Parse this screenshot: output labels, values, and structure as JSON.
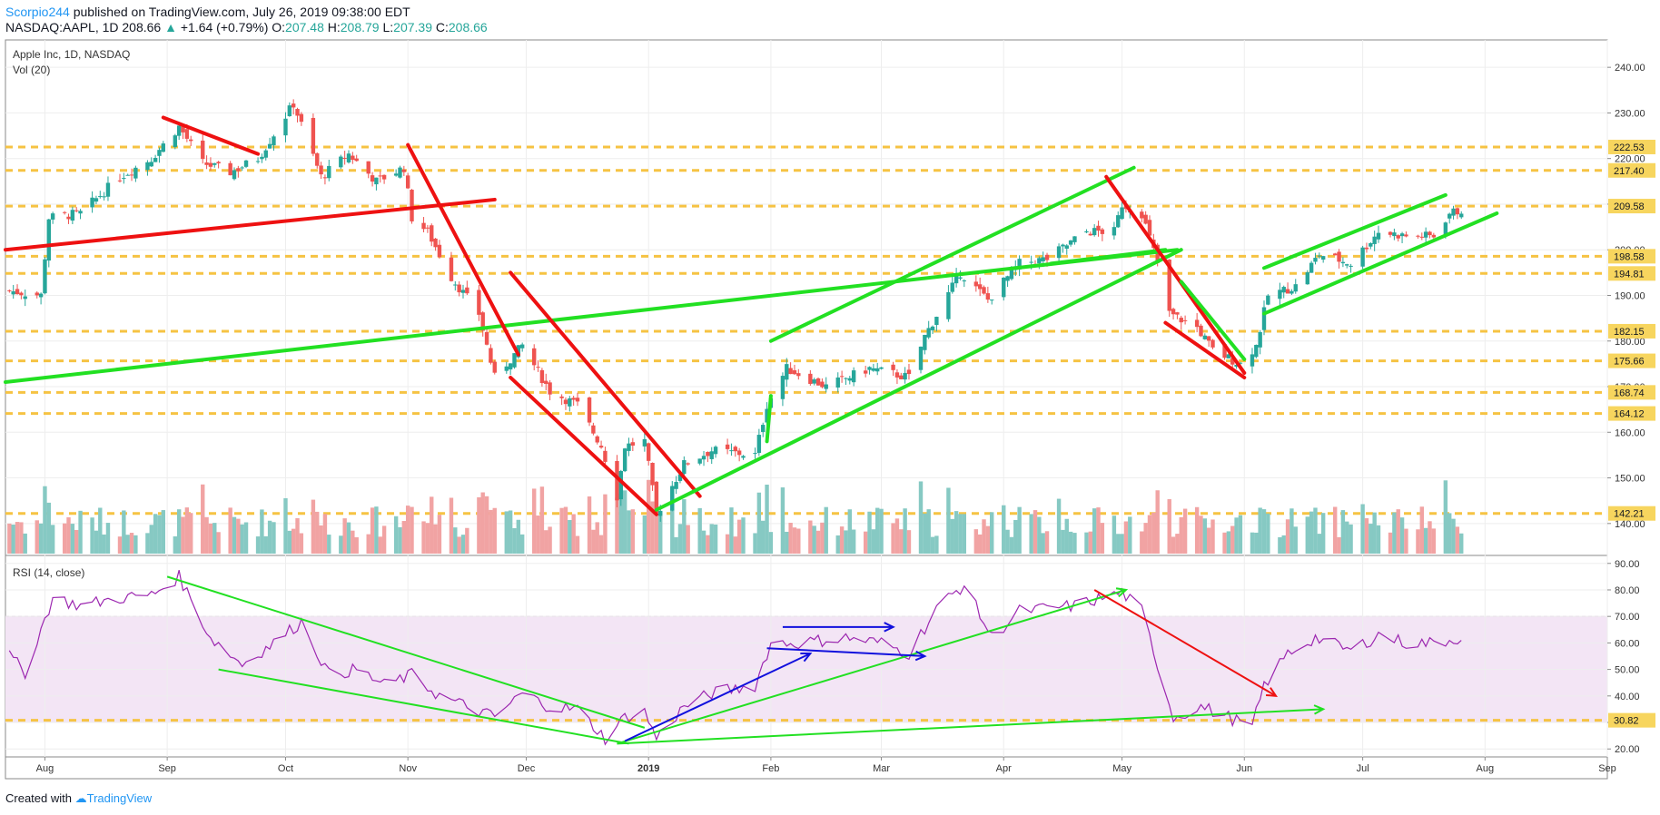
{
  "header": {
    "author": "Scorpio244",
    "published": " published on TradingView.com, July 26, 2019 09:38:00 EDT",
    "symbol": "NASDAQ:AAPL, 1D",
    "last": "208.66",
    "change_arrow": "▲",
    "change": "+1.64 (+0.79%)",
    "o_label": "O:",
    "o": "207.48",
    "h_label": "H:",
    "h": "208.79",
    "l_label": "L:",
    "l": "207.39",
    "c_label": "C:",
    "c": "208.66"
  },
  "footer": {
    "created_with": "Created with",
    "brand": "TradingView"
  },
  "colors": {
    "up": "#26a69a",
    "down": "#ef5350",
    "vol_up": "#86c9c3",
    "vol_down": "#f1a3a3",
    "green_line": "#22e022",
    "red_line": "#ee1111",
    "blue_line": "#1111dd",
    "level": "#f6c343",
    "rsi": "#9c27b0",
    "rsi_band": "#f3e5f5",
    "tag": "#f7d55e"
  },
  "price_pane": {
    "title": "Apple Inc, 1D, NASDAQ",
    "vol_label": "Vol (20)",
    "y_ticks": [
      140,
      150,
      160,
      170,
      180,
      190,
      200,
      210,
      220,
      230,
      240
    ],
    "y_tick_labels": [
      "140.00",
      "150.00",
      "160.00",
      "170.00",
      "180.00",
      "190.00",
      "200.00",
      "210.00",
      "220.00",
      "230.00",
      "240.00"
    ],
    "levels": [
      {
        "value": 222.53,
        "label": "222.53"
      },
      {
        "value": 217.4,
        "label": "217.40"
      },
      {
        "value": 209.58,
        "label": "209.58"
      },
      {
        "value": 198.58,
        "label": "198.58"
      },
      {
        "value": 194.81,
        "label": "194.81"
      },
      {
        "value": 182.15,
        "label": "182.15"
      },
      {
        "value": 175.66,
        "label": "175.66"
      },
      {
        "value": 168.74,
        "label": "168.74"
      },
      {
        "value": 164.12,
        "label": "164.12"
      },
      {
        "value": 142.21,
        "label": "142.21"
      }
    ]
  },
  "rsi_pane": {
    "title": "RSI (14, close)",
    "y_ticks": [
      20,
      30,
      40,
      50,
      60,
      70,
      80,
      90
    ],
    "y_tick_labels": [
      "20.00",
      "30.00",
      "40.00",
      "50.00",
      "60.00",
      "70.00",
      "80.00",
      "90.00"
    ],
    "band": [
      30,
      70
    ],
    "level": {
      "value": 30.82,
      "label": "30.82"
    }
  },
  "x_axis": {
    "labels": [
      {
        "date": "2018-08-01",
        "label": "Aug"
      },
      {
        "date": "2018-09-01",
        "label": "Sep"
      },
      {
        "date": "2018-10-01",
        "label": "Oct"
      },
      {
        "date": "2018-11-01",
        "label": "Nov"
      },
      {
        "date": "2018-12-01",
        "label": "Dec"
      },
      {
        "date": "2019-01-01",
        "label": "2019"
      },
      {
        "date": "2019-02-01",
        "label": "Feb"
      },
      {
        "date": "2019-03-01",
        "label": "Mar"
      },
      {
        "date": "2019-04-01",
        "label": "Apr"
      },
      {
        "date": "2019-05-01",
        "label": "May"
      },
      {
        "date": "2019-06-01",
        "label": "Jun"
      },
      {
        "date": "2019-07-01",
        "label": "Jul"
      },
      {
        "date": "2019-08-01",
        "label": "Aug"
      },
      {
        "date": "2019-09-01",
        "label": "Sep"
      }
    ]
  },
  "chart_data": {
    "type": "candlestick",
    "title": "Apple Inc, 1D, NASDAQ",
    "x_range": [
      "2018-07-22",
      "2019-09-01"
    ],
    "ylim": [
      133,
      246
    ],
    "rsi_ylim": [
      17,
      93
    ],
    "close_keypoints": [
      [
        "2018-07-23",
        191
      ],
      [
        "2018-07-31",
        190
      ],
      [
        "2018-08-02",
        207
      ],
      [
        "2018-08-10",
        208
      ],
      [
        "2018-08-20",
        216
      ],
      [
        "2018-08-28",
        220
      ],
      [
        "2018-09-04",
        227
      ],
      [
        "2018-09-10",
        219
      ],
      [
        "2018-09-17",
        217
      ],
      [
        "2018-09-24",
        220
      ],
      [
        "2018-10-03",
        232
      ],
      [
        "2018-10-10",
        216
      ],
      [
        "2018-10-17",
        221
      ],
      [
        "2018-10-24",
        215
      ],
      [
        "2018-10-31",
        218
      ],
      [
        "2018-11-02",
        207
      ],
      [
        "2018-11-06",
        204
      ],
      [
        "2018-11-12",
        194
      ],
      [
        "2018-11-19",
        186
      ],
      [
        "2018-11-23",
        172
      ],
      [
        "2018-11-30",
        179
      ],
      [
        "2018-12-07",
        169
      ],
      [
        "2018-12-14",
        166
      ],
      [
        "2018-12-20",
        157
      ],
      [
        "2018-12-24",
        146
      ],
      [
        "2018-12-26",
        157
      ],
      [
        "2018-12-31",
        158
      ],
      [
        "2019-01-03",
        142
      ],
      [
        "2019-01-10",
        153
      ],
      [
        "2019-01-17",
        156
      ],
      [
        "2019-01-28",
        155
      ],
      [
        "2019-01-31",
        166
      ],
      [
        "2019-02-05",
        174
      ],
      [
        "2019-02-15",
        170
      ],
      [
        "2019-02-26",
        174
      ],
      [
        "2019-03-08",
        172
      ],
      [
        "2019-03-12",
        181
      ],
      [
        "2019-03-21",
        195
      ],
      [
        "2019-03-28",
        189
      ],
      [
        "2019-04-05",
        197
      ],
      [
        "2019-04-12",
        198
      ],
      [
        "2019-04-22",
        204
      ],
      [
        "2019-04-29",
        204
      ],
      [
        "2019-05-01",
        210
      ],
      [
        "2019-05-06",
        208
      ],
      [
        "2019-05-10",
        197
      ],
      [
        "2019-05-13",
        186
      ],
      [
        "2019-05-20",
        183
      ],
      [
        "2019-05-24",
        178
      ],
      [
        "2019-05-31",
        175
      ],
      [
        "2019-06-04",
        179
      ],
      [
        "2019-06-07",
        190
      ],
      [
        "2019-06-14",
        192
      ],
      [
        "2019-06-20",
        199
      ],
      [
        "2019-06-28",
        197
      ],
      [
        "2019-07-05",
        204
      ],
      [
        "2019-07-12",
        203
      ],
      [
        "2019-07-19",
        203
      ],
      [
        "2019-07-23",
        208
      ],
      [
        "2019-07-26",
        208.66
      ]
    ],
    "rsi_keypoints": [
      [
        "2018-07-23",
        55
      ],
      [
        "2018-07-27",
        49
      ],
      [
        "2018-08-03",
        77
      ],
      [
        "2018-08-10",
        74
      ],
      [
        "2018-08-20",
        77
      ],
      [
        "2018-08-28",
        78
      ],
      [
        "2018-09-04",
        85
      ],
      [
        "2018-09-12",
        62
      ],
      [
        "2018-09-20",
        52
      ],
      [
        "2018-09-28",
        60
      ],
      [
        "2018-10-05",
        68
      ],
      [
        "2018-10-12",
        48
      ],
      [
        "2018-10-19",
        50
      ],
      [
        "2018-10-26",
        44
      ],
      [
        "2018-11-02",
        48
      ],
      [
        "2018-11-09",
        40
      ],
      [
        "2018-11-16",
        36
      ],
      [
        "2018-11-23",
        32
      ],
      [
        "2018-11-30",
        41
      ],
      [
        "2018-12-07",
        36
      ],
      [
        "2018-12-14",
        35
      ],
      [
        "2018-12-21",
        24
      ],
      [
        "2018-12-26",
        32
      ],
      [
        "2018-12-31",
        34
      ],
      [
        "2019-01-03",
        24
      ],
      [
        "2019-01-10",
        36
      ],
      [
        "2019-01-17",
        41
      ],
      [
        "2019-01-28",
        44
      ],
      [
        "2019-02-01",
        60
      ],
      [
        "2019-02-08",
        60
      ],
      [
        "2019-02-20",
        62
      ],
      [
        "2019-03-01",
        60
      ],
      [
        "2019-03-08",
        56
      ],
      [
        "2019-03-15",
        73
      ],
      [
        "2019-03-22",
        82
      ],
      [
        "2019-03-29",
        62
      ],
      [
        "2019-04-05",
        72
      ],
      [
        "2019-04-12",
        73
      ],
      [
        "2019-04-19",
        74
      ],
      [
        "2019-04-26",
        77
      ],
      [
        "2019-05-01",
        79
      ],
      [
        "2019-05-06",
        72
      ],
      [
        "2019-05-10",
        52
      ],
      [
        "2019-05-14",
        32
      ],
      [
        "2019-05-21",
        36
      ],
      [
        "2019-05-28",
        32
      ],
      [
        "2019-06-03",
        28
      ],
      [
        "2019-06-06",
        44
      ],
      [
        "2019-06-12",
        56
      ],
      [
        "2019-06-19",
        62
      ],
      [
        "2019-06-28",
        57
      ],
      [
        "2019-07-05",
        63
      ],
      [
        "2019-07-12",
        60
      ],
      [
        "2019-07-19",
        60
      ],
      [
        "2019-07-26",
        62
      ]
    ],
    "trendlines_price": [
      {
        "color": "red",
        "from": [
          "2018-08-31",
          229
        ],
        "to": [
          "2018-09-24",
          221
        ]
      },
      {
        "color": "red",
        "from": [
          "2018-07-22",
          200
        ],
        "to": [
          "2018-11-23",
          211
        ]
      },
      {
        "color": "green",
        "from": [
          "2018-07-22",
          171
        ],
        "to": [
          "2019-05-15",
          200
        ]
      },
      {
        "color": "red",
        "from": [
          "2018-11-01",
          223
        ],
        "to": [
          "2018-11-29",
          177
        ]
      },
      {
        "color": "red",
        "from": [
          "2018-11-27",
          195
        ],
        "to": [
          "2019-01-14",
          146
        ]
      },
      {
        "color": "red",
        "from": [
          "2018-11-27",
          172
        ],
        "to": [
          "2019-01-03",
          142
        ]
      },
      {
        "color": "green",
        "from": [
          "2019-01-03",
          143
        ],
        "to": [
          "2019-05-16",
          200
        ]
      },
      {
        "color": "green",
        "from": [
          "2019-01-31",
          158
        ],
        "to": [
          "2019-02-01",
          168
        ]
      },
      {
        "color": "green",
        "from": [
          "2019-02-01",
          180
        ],
        "to": [
          "2019-05-04",
          218
        ]
      },
      {
        "color": "green",
        "from": [
          "2019-04-13",
          197
        ],
        "to": [
          "2019-05-12",
          200
        ]
      },
      {
        "color": "red",
        "from": [
          "2019-04-27",
          216
        ],
        "to": [
          "2019-06-01",
          173
        ]
      },
      {
        "color": "red",
        "from": [
          "2019-05-12",
          184
        ],
        "to": [
          "2019-06-01",
          172
        ]
      },
      {
        "color": "green",
        "from": [
          "2019-05-16",
          193
        ],
        "to": [
          "2019-06-01",
          176
        ]
      },
      {
        "color": "green",
        "from": [
          "2019-06-06",
          186
        ],
        "to": [
          "2019-08-04",
          208
        ]
      },
      {
        "color": "green",
        "from": [
          "2019-06-06",
          196
        ],
        "to": [
          "2019-07-22",
          212
        ]
      }
    ],
    "trendlines_rsi": [
      {
        "color": "green",
        "from": [
          "2018-09-01",
          85
        ],
        "to": [
          "2018-12-31",
          28
        ],
        "arrow": false
      },
      {
        "color": "green",
        "from": [
          "2018-09-14",
          50
        ],
        "to": [
          "2018-12-27",
          22
        ],
        "arrow": false
      },
      {
        "color": "green",
        "from": [
          "2018-12-24",
          22
        ],
        "to": [
          "2019-05-02",
          80
        ],
        "arrow": true
      },
      {
        "color": "green",
        "from": [
          "2018-12-24",
          22
        ],
        "to": [
          "2019-06-21",
          35
        ],
        "arrow": true
      },
      {
        "color": "blue",
        "from": [
          "2018-12-26",
          23
        ],
        "to": [
          "2019-02-11",
          56
        ],
        "arrow": true
      },
      {
        "color": "blue",
        "from": [
          "2019-02-04",
          66
        ],
        "to": [
          "2019-03-04",
          66
        ],
        "arrow": true
      },
      {
        "color": "blue",
        "from": [
          "2019-01-31",
          58
        ],
        "to": [
          "2019-03-12",
          55
        ],
        "arrow": true
      },
      {
        "color": "red",
        "from": [
          "2019-04-24",
          80
        ],
        "to": [
          "2019-06-09",
          40
        ],
        "arrow": true
      }
    ]
  }
}
